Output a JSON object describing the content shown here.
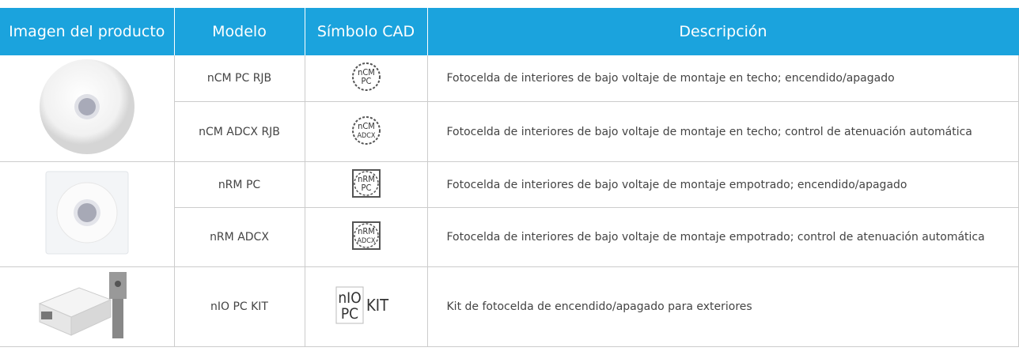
{
  "header": {
    "columns": [
      "Imagen del producto",
      "Modelo",
      "Símbolo CAD",
      "Descripción"
    ]
  },
  "rows": [
    {
      "model": "nCM PC RJB",
      "cad": [
        "nCM",
        "PC"
      ],
      "description": "Fotocelda de interiores de bajo voltaje de montaje en techo; encendido/apagado"
    },
    {
      "model": "nCM ADCX RJB",
      "cad": [
        "nCM",
        "ADCX"
      ],
      "description": "Fotocelda de interiores de bajo voltaje de montaje en techo; control de  atenuación automática"
    },
    {
      "model": "nRM PC",
      "cad": [
        "nRM",
        "PC"
      ],
      "description": "Fotocelda de interiores de bajo voltaje de montaje empotrado; encendido/apagado"
    },
    {
      "model": "nRM ADCX",
      "cad": [
        "nRM",
        "ADCX"
      ],
      "description": "Fotocelda de interiores de bajo voltaje de montaje empotrado; control de  atenuación automática"
    },
    {
      "model": "nIO PC KIT",
      "cad": [
        "nIO",
        "PC",
        "KIT"
      ],
      "description": "Kit de fotocelda de encendido/apagado para exteriores"
    }
  ]
}
